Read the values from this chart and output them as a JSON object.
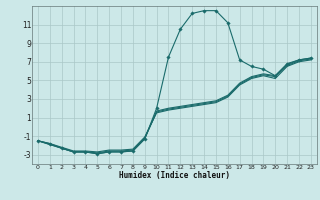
{
  "bg_color": "#cce8e8",
  "grid_color": "#aac8c8",
  "line_color": "#1a6b6b",
  "marker_color": "#1a6b6b",
  "xlabel": "Humidex (Indice chaleur)",
  "xlim": [
    -0.5,
    23.5
  ],
  "ylim": [
    -4,
    13
  ],
  "xticks": [
    0,
    1,
    2,
    3,
    4,
    5,
    6,
    7,
    8,
    9,
    10,
    11,
    12,
    13,
    14,
    15,
    16,
    17,
    18,
    19,
    20,
    21,
    22,
    23
  ],
  "yticks": [
    -3,
    -1,
    1,
    3,
    5,
    7,
    9,
    11
  ],
  "line1_x": [
    0,
    1,
    2,
    3,
    4,
    5,
    6,
    7,
    8,
    9,
    10,
    11,
    12,
    13,
    14,
    15,
    16,
    17,
    18,
    19,
    20,
    21,
    22,
    23
  ],
  "line1_y": [
    -1.5,
    -1.8,
    -2.3,
    -2.7,
    -2.7,
    -2.9,
    -2.7,
    -2.7,
    -2.6,
    -1.3,
    2.0,
    7.5,
    10.5,
    12.2,
    12.5,
    12.5,
    11.2,
    7.2,
    6.5,
    6.2,
    5.5,
    6.8,
    7.2,
    7.4
  ],
  "line2_x": [
    0,
    1,
    2,
    3,
    4,
    5,
    6,
    7,
    8,
    9,
    10,
    11,
    12,
    13,
    14,
    15,
    16,
    17,
    18,
    19,
    20,
    21,
    22,
    23
  ],
  "line2_y": [
    -1.5,
    -1.8,
    -2.2,
    -2.6,
    -2.6,
    -2.7,
    -2.5,
    -2.5,
    -2.4,
    -1.1,
    1.5,
    1.8,
    2.0,
    2.2,
    2.4,
    2.6,
    3.2,
    4.5,
    5.2,
    5.5,
    5.2,
    6.5,
    7.0,
    7.2
  ],
  "line3_x": [
    0,
    1,
    2,
    3,
    4,
    5,
    6,
    7,
    8,
    9,
    10,
    11,
    12,
    13,
    14,
    15,
    16,
    17,
    18,
    19,
    20,
    21,
    22,
    23
  ],
  "line3_y": [
    -1.5,
    -1.9,
    -2.3,
    -2.7,
    -2.7,
    -2.8,
    -2.6,
    -2.6,
    -2.5,
    -1.2,
    1.6,
    1.9,
    2.1,
    2.3,
    2.5,
    2.7,
    3.3,
    4.6,
    5.3,
    5.6,
    5.4,
    6.6,
    7.1,
    7.3
  ],
  "line4_x": [
    0,
    1,
    2,
    3,
    4,
    5,
    6,
    7,
    8,
    9,
    10,
    11,
    12,
    13,
    14,
    15,
    16,
    17,
    18,
    19,
    20,
    21,
    22,
    23
  ],
  "line4_y": [
    -1.5,
    -1.9,
    -2.3,
    -2.7,
    -2.7,
    -2.9,
    -2.7,
    -2.7,
    -2.6,
    -1.3,
    1.7,
    2.0,
    2.2,
    2.4,
    2.6,
    2.8,
    3.4,
    4.7,
    5.4,
    5.7,
    5.5,
    6.7,
    7.2,
    7.4
  ],
  "figwidth": 3.2,
  "figheight": 2.0,
  "dpi": 100
}
